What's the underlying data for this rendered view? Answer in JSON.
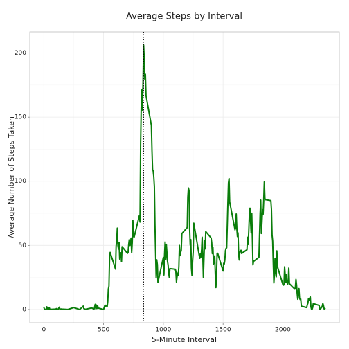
{
  "chart_data": {
    "type": "line",
    "title": "Average Steps by Interval",
    "x_label": "5-Minute Interval",
    "y_label": "Average Number of Steps Taken",
    "x": [
      0,
      5,
      10,
      15,
      20,
      25,
      30,
      35,
      40,
      45,
      50,
      55,
      100,
      105,
      110,
      115,
      120,
      125,
      130,
      135,
      140,
      145,
      150,
      200,
      250,
      300,
      330,
      335,
      340,
      345,
      400,
      420,
      425,
      430,
      435,
      440,
      445,
      450,
      455,
      500,
      505,
      510,
      515,
      520,
      525,
      530,
      535,
      540,
      545,
      550,
      555,
      600,
      605,
      610,
      615,
      620,
      625,
      630,
      635,
      640,
      645,
      650,
      655,
      700,
      705,
      710,
      715,
      720,
      725,
      730,
      735,
      740,
      745,
      750,
      755,
      800,
      805,
      810,
      815,
      820,
      825,
      830,
      835,
      840,
      845,
      850,
      855,
      900,
      905,
      910,
      915,
      920,
      925,
      930,
      935,
      940,
      945,
      950,
      955,
      1000,
      1005,
      1010,
      1015,
      1020,
      1025,
      1030,
      1035,
      1040,
      1045,
      1050,
      1055,
      1100,
      1105,
      1110,
      1115,
      1120,
      1125,
      1130,
      1135,
      1140,
      1145,
      1150,
      1155,
      1200,
      1205,
      1210,
      1215,
      1220,
      1225,
      1230,
      1235,
      1240,
      1245,
      1250,
      1255,
      1300,
      1305,
      1310,
      1315,
      1320,
      1325,
      1330,
      1335,
      1340,
      1345,
      1350,
      1355,
      1400,
      1405,
      1410,
      1415,
      1420,
      1425,
      1430,
      1435,
      1440,
      1445,
      1450,
      1455,
      1500,
      1505,
      1510,
      1515,
      1520,
      1525,
      1530,
      1535,
      1540,
      1545,
      1550,
      1555,
      1600,
      1605,
      1610,
      1615,
      1620,
      1625,
      1630,
      1635,
      1640,
      1645,
      1650,
      1655,
      1700,
      1705,
      1710,
      1715,
      1720,
      1725,
      1730,
      1735,
      1740,
      1745,
      1750,
      1755,
      1800,
      1805,
      1810,
      1815,
      1820,
      1825,
      1830,
      1835,
      1840,
      1845,
      1850,
      1855,
      1900,
      1905,
      1910,
      1915,
      1920,
      1925,
      1930,
      1935,
      1940,
      1945,
      1950,
      1955,
      2000,
      2005,
      2010,
      2015,
      2020,
      2025,
      2030,
      2035,
      2040,
      2045,
      2050,
      2055,
      2100,
      2105,
      2110,
      2115,
      2120,
      2125,
      2130,
      2135,
      2140,
      2145,
      2150,
      2155,
      2200,
      2205,
      2210,
      2215,
      2220,
      2225,
      2230,
      2235,
      2240,
      2245,
      2250,
      2255,
      2300,
      2305,
      2310,
      2315,
      2320,
      2325,
      2330,
      2335,
      2340,
      2345,
      2350,
      2355
    ],
    "series": [
      {
        "name": "steps",
        "color": "#0a7d0a",
        "values": [
          1.7,
          0.3,
          0.1,
          0.2,
          0.1,
          2.1,
          0.5,
          0.9,
          0,
          1.5,
          0.3,
          0.1,
          0.3,
          0.7,
          0.2,
          0.3,
          0,
          1.1,
          1.8,
          0.2,
          0.2,
          0.4,
          0.3,
          0,
          1.5,
          0,
          2.6,
          0.7,
          0.5,
          0.1,
          1.2,
          0.3,
          1.9,
          4.0,
          0.5,
          3.5,
          0.8,
          3.1,
          1.1,
          0,
          1.6,
          3.0,
          2.2,
          3.3,
          3.0,
          2.1,
          6.1,
          16.0,
          18.3,
          39.5,
          44.5,
          31.5,
          49.3,
          53.8,
          63.5,
          50.0,
          47.1,
          52.2,
          39.3,
          44.0,
          44.2,
          37.4,
          49.0,
          43.8,
          44.4,
          50.5,
          54.5,
          49.9,
          51.0,
          55.7,
          44.3,
          52.3,
          69.5,
          57.8,
          56.2,
          73.4,
          68.2,
          129.4,
          157.5,
          171.2,
          155.4,
          177.3,
          206.2,
          195.9,
          179.6,
          183.4,
          167.0,
          143.5,
          124.0,
          109.1,
          108.1,
          103.7,
          95.97,
          66.2,
          45.2,
          24.8,
          38.8,
          34.98,
          21.1,
          40.6,
          26.98,
          42.4,
          52.7,
          38.9,
          50.8,
          44.3,
          37.4,
          34.7,
          28.3,
          25.1,
          31.9,
          31.4,
          29.7,
          21.3,
          25.5,
          28.4,
          26.5,
          33.4,
          50.0,
          42.0,
          44.6,
          46.0,
          59.2,
          63.9,
          87.7,
          94.8,
          92.8,
          63.4,
          50.2,
          54.5,
          32.4,
          26.5,
          37.7,
          45.1,
          67.3,
          42.3,
          39.9,
          43.3,
          40.98,
          46.2,
          56.4,
          42.8,
          25.1,
          39.96,
          53.5,
          47.3,
          60.8,
          55.8,
          51.96,
          43.6,
          48.7,
          35.5,
          37.5,
          41.8,
          27.5,
          17.1,
          26.1,
          43.6,
          43.8,
          30.0,
          36.1,
          35.5,
          38.8,
          45.96,
          47.75,
          48.1,
          65.3,
          82.9,
          98.7,
          102.1,
          83.96,
          62.1,
          64.1,
          74.5,
          63.2,
          56.9,
          59.8,
          43.9,
          38.6,
          44.7,
          45.5,
          46.2,
          43.7,
          46.6,
          56.3,
          50.7,
          61.2,
          73.3,
          79.0,
          68.9,
          59.7,
          75.1,
          56.5,
          34.8,
          37.5,
          40.7,
          58.0,
          74.7,
          85.3,
          59.3,
          67.8,
          77.7,
          74.2,
          85.3,
          99.5,
          86.6,
          85.6,
          84.9,
          77.8,
          58.0,
          53.4,
          36.3,
          20.7,
          27.4,
          40.0,
          30.2,
          25.5,
          45.7,
          33.5,
          19.6,
          19.0,
          19.3,
          33.3,
          26.8,
          21.2,
          27.3,
          21.3,
          19.5,
          21.3,
          32.3,
          20.2,
          15.9,
          17.2,
          23.5,
          19.2,
          12.5,
          8.0,
          14.7,
          16.3,
          8.7,
          7.8,
          8.1,
          2.6,
          1.5,
          3.7,
          4.8,
          8.5,
          7.1,
          8.7,
          9.8,
          2.2,
          0.3,
          0.1,
          1.6,
          4.6,
          3.3,
          2.8,
          0,
          0.8,
          1.0,
          1.6,
          2.6,
          4.7,
          3.3,
          0.6,
          0.2,
          1.1
        ]
      }
    ],
    "vline": 835,
    "xlim": [
      -117.75,
      2472.75
    ],
    "xticks": [
      0,
      500,
      1000,
      1500,
      2000
    ],
    "ylim": [
      -10.3,
      216.5
    ],
    "yticks": [
      0,
      50,
      100,
      150,
      200
    ],
    "grid": true
  }
}
